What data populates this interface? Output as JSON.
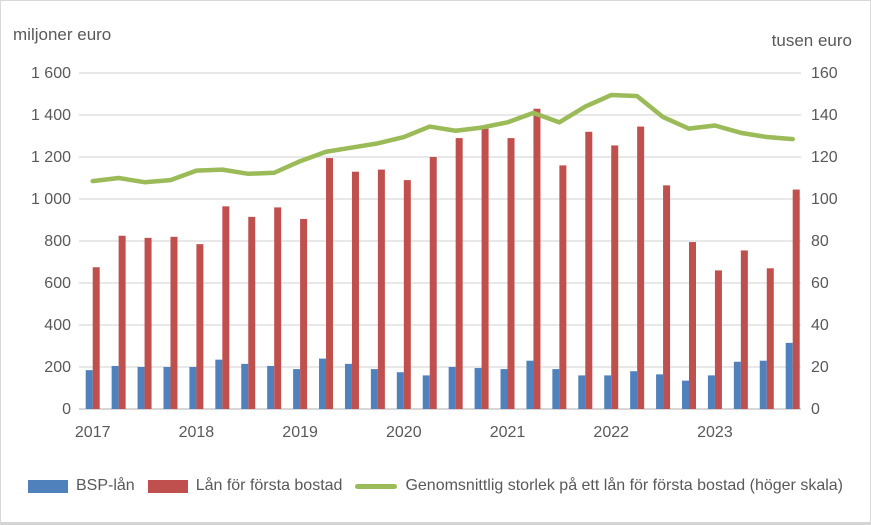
{
  "chart_data": {
    "type": "bar+line combo (quarterly)",
    "x_years": [
      "2017",
      "2018",
      "2019",
      "2020",
      "2021",
      "2022",
      "2023"
    ],
    "quarters_per_year": 4,
    "left_axis": {
      "title": "miljoner euro",
      "min": 0,
      "max": 1600,
      "step": 200,
      "tick_labels": [
        "0",
        "200",
        "400",
        "600",
        "800",
        "1 000",
        "1 200",
        "1 400",
        "1 600"
      ]
    },
    "right_axis": {
      "title": "tusen euro",
      "min": 0,
      "max": 160,
      "step": 20,
      "tick_labels": [
        "0",
        "20",
        "40",
        "60",
        "80",
        "100",
        "120",
        "140",
        "160"
      ]
    },
    "grid": true,
    "legend_position": "bottom",
    "series": [
      {
        "name": "BSP-lån",
        "type": "bar",
        "axis": "left",
        "color": "#4F81BD",
        "values": [
          185,
          205,
          200,
          200,
          200,
          235,
          215,
          205,
          190,
          240,
          215,
          190,
          175,
          160,
          200,
          195,
          190,
          230,
          190,
          160,
          160,
          180,
          165,
          135,
          160,
          225,
          230,
          315
        ]
      },
      {
        "name": "Lån för första bostad",
        "type": "bar",
        "axis": "left",
        "color": "#C0504D",
        "values": [
          675,
          825,
          815,
          820,
          785,
          965,
          915,
          960,
          905,
          1195,
          1130,
          1140,
          1090,
          1200,
          1290,
          1335,
          1290,
          1430,
          1160,
          1320,
          1255,
          1345,
          1065,
          795,
          660,
          755,
          670,
          1045
        ]
      },
      {
        "name": "Genomsnittlig storlek på ett lån för första bostad (höger skala)",
        "type": "line",
        "axis": "right",
        "color": "#9BBB59",
        "values": [
          108.5,
          110,
          108,
          109,
          113.5,
          114,
          112,
          112.5,
          118,
          122.5,
          124.5,
          126.5,
          129.5,
          134.5,
          132.5,
          134,
          136.5,
          141,
          136.5,
          144,
          149.5,
          149,
          139,
          133.5,
          135,
          131.5,
          129.5,
          128.5
        ]
      }
    ]
  },
  "colors": {
    "grid": "#D9D9D9",
    "baseline": "#BFBFBF",
    "text": "#595959",
    "background": "#FFFFFF",
    "frame_border": "#D9D9D9"
  }
}
